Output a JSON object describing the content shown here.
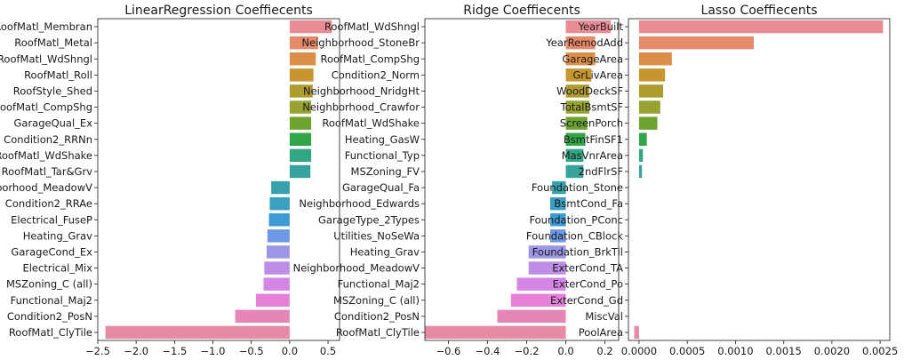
{
  "chart_data": [
    {
      "type": "bar",
      "orientation": "horizontal",
      "title": "LinearRegression Coeffiecents",
      "xlabel": "",
      "ylabel": "",
      "xlim": [
        -2.5,
        0.65
      ],
      "xticks": [
        "-2.5",
        "-2.0",
        "-1.5",
        "-1.0",
        "-0.5",
        "0.0",
        "0.5"
      ],
      "categories": [
        "RoofMatl_Membran",
        "RoofMatl_Metal",
        "RoofMatl_WdShngl",
        "RoofMatl_Roll",
        "RoofStyle_Shed",
        "RoofMatl_CompShg",
        "GarageQual_Ex",
        "Condition2_RRNn",
        "RoofMatl_WdShake",
        "RoofMatl_Tar&Grv",
        "Neighborhood_MeadowV",
        "Condition2_RRAe",
        "Electrical_FuseP",
        "Heating_Grav",
        "GarageCond_Ex",
        "Electrical_Mix",
        "MSZoning_C (all)",
        "Functional_Maj2",
        "Condition2_PosN",
        "RoofMatl_ClyTile"
      ],
      "values": [
        0.55,
        0.37,
        0.34,
        0.31,
        0.3,
        0.28,
        0.28,
        0.28,
        0.28,
        0.27,
        -0.24,
        -0.26,
        -0.27,
        -0.29,
        -0.3,
        -0.33,
        -0.34,
        -0.44,
        -0.71,
        -2.4
      ],
      "colors": [
        "#ea8c95",
        "#e58a6a",
        "#dc8f48",
        "#c8962f",
        "#ae9c2f",
        "#97a22f",
        "#6ca42f",
        "#31a647",
        "#33a683",
        "#35a39b",
        "#37a1ae",
        "#3aa0c1",
        "#3d9bd3",
        "#6e98e6",
        "#9d95e6",
        "#be8de6",
        "#d585e6",
        "#e681d8",
        "#e686b6",
        "#e68aa5"
      ]
    },
    {
      "type": "bar",
      "orientation": "horizontal",
      "title": "Ridge Coeffiecents",
      "xlabel": "",
      "ylabel": "",
      "xlim": [
        -0.72,
        0.27
      ],
      "xticks": [
        "-0.6",
        "-0.4",
        "-0.2",
        "0.0",
        "0.2"
      ],
      "categories": [
        "RoofMatl_WdShngl",
        "Neighborhood_StoneBr",
        "RoofMatl_CompShg",
        "Condition2_Norm",
        "Neighborhood_NridgHt",
        "Neighborhood_Crawfor",
        "RoofMatl_WdShake",
        "Heating_GasW",
        "Functional_Typ",
        "MSZoning_FV",
        "GarageQual_Fa",
        "Neighborhood_Edwards",
        "GarageType_2Types",
        "Utilities_NoSeWa",
        "Heating_Grav",
        "Neighborhood_MeadowV",
        "Functional_Maj2",
        "MSZoning_C (all)",
        "Condition2_PosN",
        "RoofMatl_ClyTile"
      ],
      "values": [
        0.23,
        0.15,
        0.15,
        0.13,
        0.12,
        0.12,
        0.11,
        0.1,
        0.09,
        0.09,
        -0.07,
        -0.08,
        -0.08,
        -0.08,
        -0.19,
        -0.19,
        -0.25,
        -0.28,
        -0.35,
        -0.72
      ],
      "colors": [
        "#ea8c95",
        "#e58a6a",
        "#dc8f48",
        "#c8962f",
        "#ae9c2f",
        "#97a22f",
        "#6ca42f",
        "#31a647",
        "#33a683",
        "#35a39b",
        "#37a1ae",
        "#3aa0c1",
        "#3d9bd3",
        "#6e98e6",
        "#9d95e6",
        "#be8de6",
        "#d585e6",
        "#e681d8",
        "#e686b6",
        "#e68aa5"
      ]
    },
    {
      "type": "bar",
      "orientation": "horizontal",
      "title": "Lasso Coeffiecents",
      "xlabel": "",
      "ylabel": "",
      "xlim": [
        -0.00011,
        0.0026
      ],
      "xticks": [
        "0.0000",
        "0.0005",
        "0.0010",
        "0.0015",
        "0.0020",
        "0.0025"
      ],
      "categories": [
        "YearBuilt",
        "YearRemodAdd",
        "GarageArea",
        "GrLivArea",
        "WoodDeckSF",
        "TotalBsmtSF",
        "ScreenPorch",
        "BsmtFinSF1",
        "MasVnrArea",
        "2ndFlrSF",
        "Foundation_Stone",
        "BsmtCond_Fa",
        "Foundation_PConc",
        "Foundation_CBlock",
        "Foundation_BrkTil",
        "ExterCond_TA",
        "ExterCond_Po",
        "ExterCond_Gd",
        "MiscVal",
        "PoolArea"
      ],
      "values": [
        0.00253,
        0.00119,
        0.00034,
        0.00027,
        0.00025,
        0.00022,
        0.00019,
        8e-05,
        4e-05,
        3e-05,
        0,
        0,
        0,
        0,
        0,
        0,
        0,
        0,
        0,
        -5e-05
      ],
      "colors": [
        "#ea8c95",
        "#e58a6a",
        "#dc8f48",
        "#c8962f",
        "#ae9c2f",
        "#97a22f",
        "#6ca42f",
        "#31a647",
        "#33a683",
        "#35a39b",
        "#37a1ae",
        "#3aa0c1",
        "#3d9bd3",
        "#6e98e6",
        "#9d95e6",
        "#be8de6",
        "#d585e6",
        "#e681d8",
        "#e686b6",
        "#e68aa5"
      ]
    }
  ]
}
